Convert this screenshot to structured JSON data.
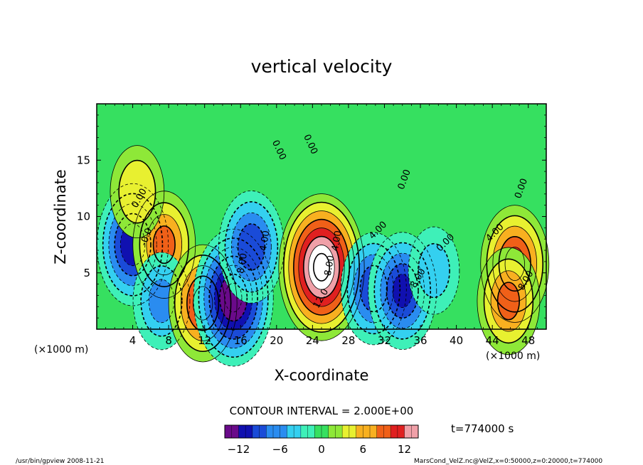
{
  "chart_data": {
    "type": "heatmap",
    "title": "vertical velocity",
    "xlabel": "X-coordinate",
    "ylabel": "Z-coordinate",
    "x_unit": "(×1000 m)",
    "y_unit": "(×1000 m)",
    "xlim": [
      0,
      50
    ],
    "ylim": [
      0,
      20
    ],
    "x_ticks": [
      4,
      8,
      12,
      16,
      20,
      24,
      28,
      32,
      36,
      40,
      44,
      48
    ],
    "x_tick_labels": [
      "4",
      "8",
      "12",
      "16",
      "20",
      "24",
      "28",
      "32",
      "36",
      "40",
      "44",
      "48"
    ],
    "y_ticks": [
      5,
      10,
      15
    ],
    "y_tick_labels": [
      "5",
      "10",
      "15"
    ],
    "contour_interval_text": "CONTOUR INTERVAL = 2.000E+00",
    "time_text": "t=774000 s",
    "colorbar": {
      "range": [
        -14,
        14
      ],
      "ticks": [
        -12,
        -6,
        0,
        6,
        12
      ],
      "tick_labels": [
        "−12",
        "−6",
        "0",
        "6",
        "12"
      ],
      "colors": [
        "#6a0a8a",
        "#1010b0",
        "#1a4bd8",
        "#2a8cf0",
        "#34d0f0",
        "#3ef0b8",
        "#36e060",
        "#8ee838",
        "#e8f030",
        "#f8b020",
        "#f06018",
        "#e02020",
        "#f0a0a8"
      ]
    },
    "contour_labels": [
      {
        "text": "0.00",
        "x": 5,
        "z": 11.5,
        "angle": -60
      },
      {
        "text": "0.00",
        "x": 20,
        "z": 15.8,
        "angle": 65
      },
      {
        "text": "0.00",
        "x": 23.5,
        "z": 16.3,
        "angle": 65
      },
      {
        "text": "0.00",
        "x": 34.5,
        "z": 13.2,
        "angle": -70
      },
      {
        "text": "0.00",
        "x": 39,
        "z": 7.5,
        "angle": -45
      },
      {
        "text": "0.00",
        "x": 47.5,
        "z": 12.4,
        "angle": -70
      },
      {
        "text": "4.00",
        "x": 19,
        "z": 7.8,
        "angle": -80
      },
      {
        "text": "4.00",
        "x": 27,
        "z": 7.8,
        "angle": -80
      },
      {
        "text": "4.00",
        "x": 31.5,
        "z": 8.6,
        "angle": -45
      },
      {
        "text": "4.00",
        "x": 44.5,
        "z": 8.4,
        "angle": -45
      },
      {
        "text": "8.00",
        "x": 16.5,
        "z": 5.8,
        "angle": -80
      },
      {
        "text": "8.00",
        "x": 26.2,
        "z": 5.6,
        "angle": -80
      },
      {
        "text": "8.00",
        "x": 36,
        "z": 4.4,
        "angle": -60
      },
      {
        "text": "8.00",
        "x": 48,
        "z": 4.2,
        "angle": -60
      },
      {
        "text": "12.0",
        "x": 25.2,
        "z": 2.6,
        "angle": -60
      },
      {
        "text": "-0.0",
        "x": 5.8,
        "z": 8.1,
        "angle": -70
      }
    ],
    "field_extrema": [
      {
        "x": 4.0,
        "z": 7.5,
        "value": -11
      },
      {
        "x": 7.5,
        "z": 7.5,
        "value": 8
      },
      {
        "x": 4.5,
        "z": 12.2,
        "value": 5
      },
      {
        "x": 7.2,
        "z": 2.5,
        "value": -6
      },
      {
        "x": 11.8,
        "z": 2.3,
        "value": 10
      },
      {
        "x": 15.2,
        "z": 2.8,
        "value": -14
      },
      {
        "x": 17.2,
        "z": 7.3,
        "value": -9
      },
      {
        "x": 25.0,
        "z": 5.5,
        "value": 16
      },
      {
        "x": 30.8,
        "z": 3.6,
        "value": -9
      },
      {
        "x": 34.0,
        "z": 3.4,
        "value": -10
      },
      {
        "x": 37.5,
        "z": 5.2,
        "value": -4
      },
      {
        "x": 46.5,
        "z": 5.8,
        "value": 10
      },
      {
        "x": 45.8,
        "z": 2.5,
        "value": 8
      }
    ]
  },
  "footer": {
    "left": "/usr/bin/gpview  2008-11-21",
    "right": "MarsCond_VelZ.nc@VelZ,x=0:50000,z=0:20000,t=774000"
  }
}
